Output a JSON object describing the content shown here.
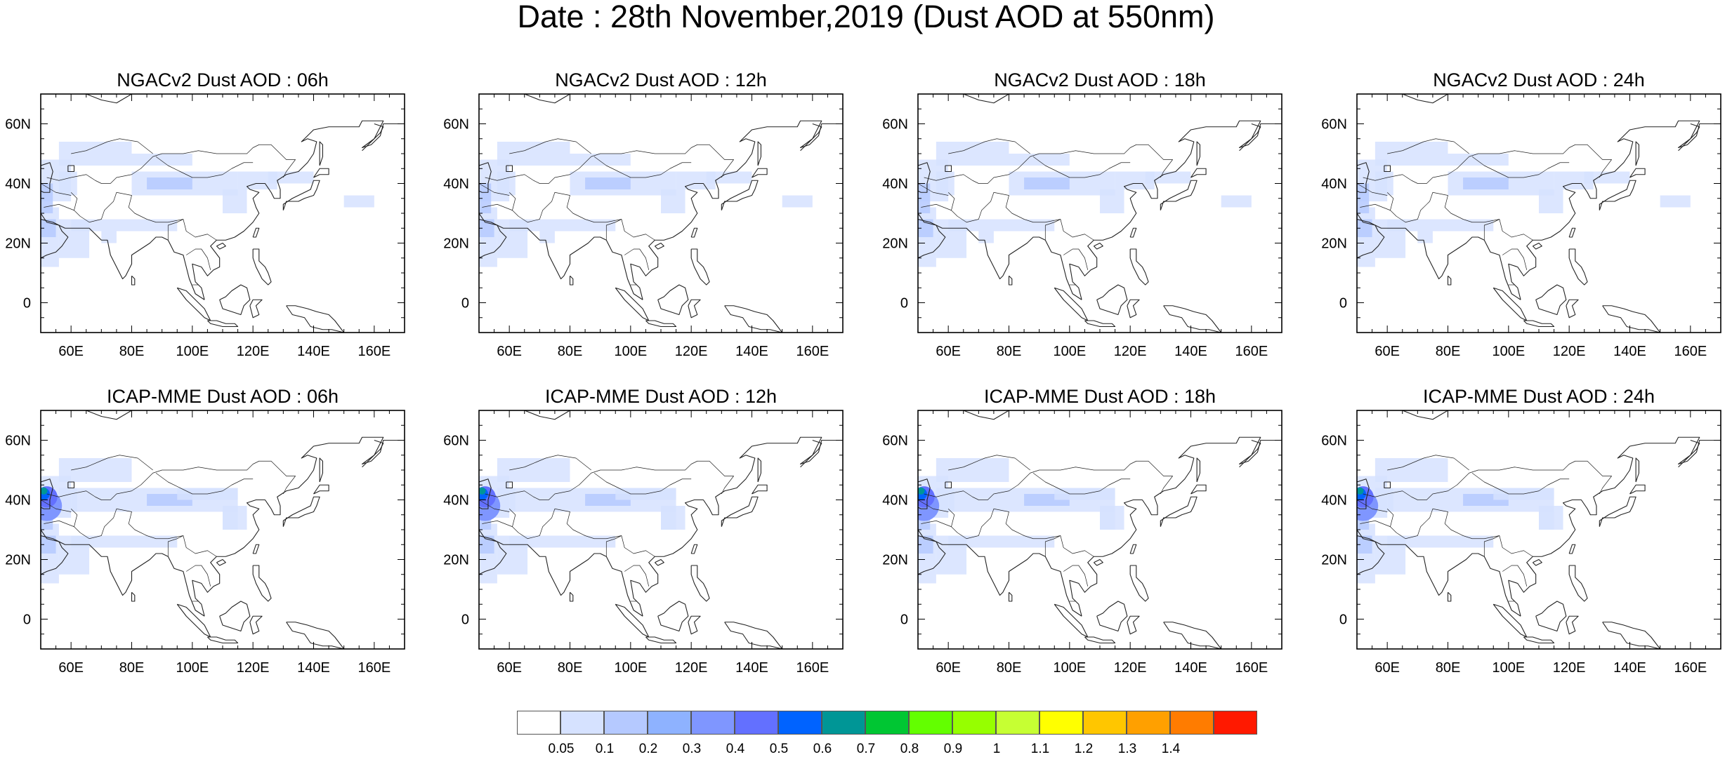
{
  "title": "Date : 28th November,2019 (Dust AOD at 550nm)",
  "lon_ticks": [
    "60E",
    "80E",
    "100E",
    "120E",
    "140E",
    "160E"
  ],
  "lat_ticks": [
    "60N",
    "40N",
    "20N",
    "0"
  ],
  "panels": [
    {
      "title": "NGACv2 Dust AOD : 06h",
      "model": "NGACv2",
      "hour": "06h"
    },
    {
      "title": "NGACv2 Dust AOD : 12h",
      "model": "NGACv2",
      "hour": "12h"
    },
    {
      "title": "NGACv2 Dust AOD : 18h",
      "model": "NGACv2",
      "hour": "18h"
    },
    {
      "title": "NGACv2 Dust AOD : 24h",
      "model": "NGACv2",
      "hour": "24h"
    },
    {
      "title": "ICAP-MME Dust AOD : 06h",
      "model": "ICAP-MME",
      "hour": "06h"
    },
    {
      "title": "ICAP-MME Dust AOD : 12h",
      "model": "ICAP-MME",
      "hour": "12h"
    },
    {
      "title": "ICAP-MME Dust AOD : 18h",
      "model": "ICAP-MME",
      "hour": "18h"
    },
    {
      "title": "ICAP-MME Dust AOD : 24h",
      "model": "ICAP-MME",
      "hour": "24h"
    }
  ],
  "colorbar": {
    "labels": [
      "0.05",
      "0.1",
      "0.2",
      "0.3",
      "0.4",
      "0.5",
      "0.6",
      "0.7",
      "0.8",
      "0.9",
      "1",
      "1.1",
      "1.2",
      "1.3",
      "1.4"
    ],
    "colors": [
      "#ffffff",
      "#d6e2ff",
      "#b5c9ff",
      "#8eb2ff",
      "#7f96ff",
      "#6370ff",
      "#0063ff",
      "#009696",
      "#00c633",
      "#63ff00",
      "#96ff00",
      "#c6ff33",
      "#ffff00",
      "#ffc600",
      "#ffa000",
      "#ff7c00",
      "#ff1900"
    ]
  }
}
